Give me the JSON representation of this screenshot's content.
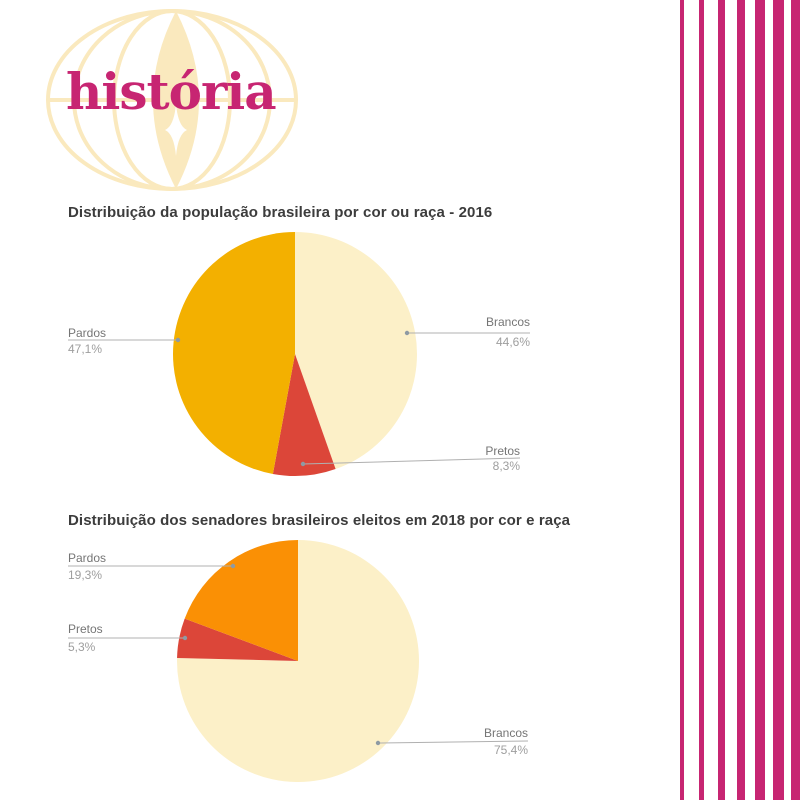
{
  "theme": {
    "brand_magenta": "#C72572",
    "globe_yellow": "#FAE9BE",
    "background": "#FFFFFF",
    "title_gray": "#3C3C3C",
    "label_gray": "#757575",
    "value_gray": "#9E9E9E",
    "leader_line_gray": "#B0B0B0"
  },
  "logo": {
    "text": "história"
  },
  "chart_data": [
    {
      "type": "pie",
      "title": "Distribuição da população brasileira por cor ou raça - 2016",
      "start_angle": "12-oclock",
      "direction": "clockwise",
      "legend_position": "none",
      "label_style": "callout-with-percentage",
      "slices": [
        {
          "label": "Brancos",
          "value": 44.6,
          "value_label": "44,6%",
          "color": "#FCF0C8"
        },
        {
          "label": "Pretos",
          "value": 8.3,
          "value_label": "8,3%",
          "color": "#DC4639"
        },
        {
          "label": "Pardos",
          "value": 47.1,
          "value_label": "47,1%",
          "color": "#F3B000"
        }
      ]
    },
    {
      "type": "pie",
      "title": "Distribuição dos senadores brasileiros eleitos em 2018 por cor e raça",
      "start_angle": "12-oclock",
      "direction": "clockwise",
      "legend_position": "none",
      "label_style": "callout-with-percentage",
      "slices": [
        {
          "label": "Brancos",
          "value": 75.4,
          "value_label": "75,4%",
          "color": "#FCF0C8"
        },
        {
          "label": "Pretos",
          "value": 5.3,
          "value_label": "5,3%",
          "color": "#DC4639"
        },
        {
          "label": "Pardos",
          "value": 19.3,
          "value_label": "19,3%",
          "color": "#FA9005"
        }
      ]
    }
  ]
}
